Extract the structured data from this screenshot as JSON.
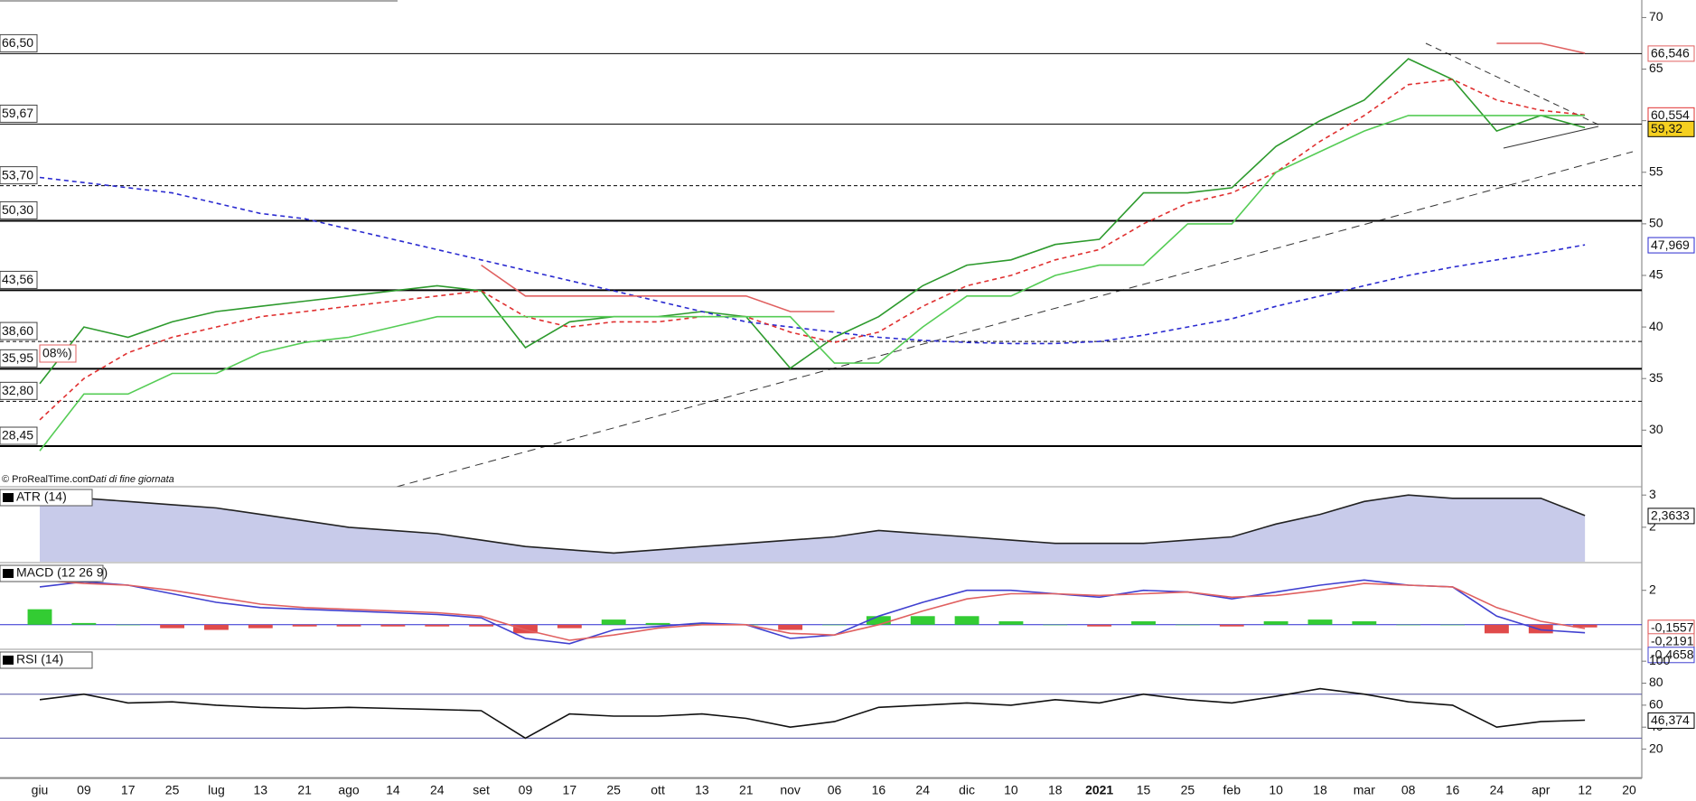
{
  "source": "© ProRealTime.com",
  "note": "Dati di fine giornata",
  "chart_data": [
    {
      "type": "line",
      "categories": [
        "giu",
        "09",
        "17",
        "25",
        "lug",
        "13",
        "21",
        "ago",
        "14",
        "24",
        "set",
        "09",
        "17",
        "25",
        "ott",
        "13",
        "21",
        "nov",
        "06",
        "16",
        "24",
        "dic",
        "10",
        "18",
        "2021",
        "15",
        "25",
        "feb",
        "10",
        "18",
        "mar",
        "08",
        "16",
        "24",
        "apr",
        "12",
        "20"
      ],
      "ylim": [
        24.6,
        71.7
      ],
      "yticks": [
        30,
        35,
        40,
        45,
        50,
        55,
        60,
        65,
        70
      ],
      "annotation": "08%)",
      "hlines": [
        {
          "value": 66.5,
          "label": "66,50",
          "style": "solid"
        },
        {
          "value": 59.67,
          "label": "59,67",
          "style": "solid"
        },
        {
          "value": 53.7,
          "label": "53,70",
          "style": "dashed"
        },
        {
          "value": 50.3,
          "label": "50,30",
          "style": "thick"
        },
        {
          "value": 43.56,
          "label": "43,56",
          "style": "thick"
        },
        {
          "value": 38.6,
          "label": "38,60",
          "style": "dashed"
        },
        {
          "value": 35.95,
          "label": "35,95",
          "style": "thick"
        },
        {
          "value": 32.8,
          "label": "32,80",
          "style": "dashed"
        },
        {
          "value": 28.45,
          "label": "28,45",
          "style": "thick"
        }
      ],
      "series": [
        {
          "color": "#2d9a2d",
          "dash": false,
          "values": [
            34.5,
            40,
            39,
            40.5,
            41.5,
            42,
            42.5,
            43,
            43.5,
            44,
            43.5,
            38,
            40.5,
            41,
            41,
            41.5,
            41,
            36,
            39,
            41,
            44,
            46,
            46.5,
            48,
            48.5,
            53,
            53,
            53.5,
            57.5,
            60,
            62,
            66,
            64,
            59,
            60.5,
            59.32,
            null
          ]
        },
        {
          "color": "#2a2ad0",
          "dash": true,
          "values": [
            54.5,
            54,
            53.5,
            53,
            52,
            51,
            50.5,
            49.5,
            48.5,
            47.5,
            46.5,
            45.5,
            44.5,
            43.5,
            42.5,
            41.5,
            40.5,
            40,
            39.5,
            39,
            38.7,
            38.5,
            38.4,
            38.4,
            38.6,
            39.2,
            40,
            40.8,
            42,
            43,
            44,
            45,
            45.8,
            46.5,
            47.2,
            47.969,
            null
          ]
        },
        {
          "color": "#e03030",
          "dash": true,
          "values": [
            31,
            35,
            37.5,
            39,
            40,
            41,
            41.5,
            42,
            42.5,
            43,
            43.5,
            41,
            40,
            40.5,
            40.5,
            41,
            41,
            39.5,
            38.5,
            39.5,
            42,
            44,
            45,
            46.5,
            47.5,
            50,
            52,
            53,
            55,
            58,
            60.5,
            63.5,
            64,
            62,
            61,
            60.554,
            null
          ]
        },
        {
          "color": "#55cc55",
          "dash": false,
          "values": [
            28,
            33.5,
            33.5,
            35.5,
            35.5,
            37.5,
            38.5,
            39,
            40,
            41,
            41,
            41,
            41,
            41,
            41,
            41,
            41,
            41,
            36.5,
            36.5,
            40,
            43,
            43,
            45,
            46,
            46,
            50,
            50,
            55,
            57,
            59,
            60.5,
            60.5,
            60.5,
            60.5,
            60.5,
            null
          ]
        },
        {
          "color": "#e06060",
          "dash": false,
          "values": [
            null,
            null,
            null,
            null,
            null,
            null,
            null,
            null,
            null,
            null,
            46,
            43,
            43,
            43,
            43,
            43,
            43,
            41.5,
            41.5,
            null,
            null,
            null,
            null,
            null,
            null,
            null,
            null,
            null,
            null,
            null,
            null,
            null,
            null,
            67.5,
            67.5,
            66.546,
            null
          ]
        }
      ],
      "tags": [
        {
          "value": 66.546,
          "label": "66,546",
          "color": "#e06060",
          "bg": "#ffffff"
        },
        {
          "value": 60.554,
          "label": "60,554",
          "color": "#e03030",
          "bg": "#ffffff"
        },
        {
          "value": 59.32,
          "label": "59,32",
          "color": "#000000",
          "bg": "#f5d020"
        },
        {
          "value": 47.969,
          "label": "47,969",
          "color": "#2a2ad0",
          "bg": "#ffffff"
        }
      ]
    },
    {
      "type": "line",
      "title": "ATR (14)",
      "ylim": [
        0.93,
        3.23
      ],
      "yticks": [
        2,
        3
      ],
      "series": [
        {
          "color": "#222222",
          "fill": "#c8cbea",
          "dash": false,
          "values": [
            2.8,
            2.9,
            2.8,
            2.7,
            2.6,
            2.4,
            2.2,
            2.0,
            1.9,
            1.8,
            1.6,
            1.4,
            1.3,
            1.2,
            1.3,
            1.4,
            1.5,
            1.6,
            1.7,
            1.9,
            1.8,
            1.7,
            1.6,
            1.5,
            1.5,
            1.5,
            1.6,
            1.7,
            2.1,
            2.4,
            2.8,
            3.0,
            2.9,
            2.9,
            2.9,
            2.3633,
            null
          ]
        }
      ],
      "tags": [
        {
          "value": 2.3633,
          "label": "2,3633",
          "color": "#000000",
          "bg": "#ffffff"
        }
      ]
    },
    {
      "type": "line",
      "title": "MACD (12 26 9)",
      "ylim": [
        -1.375,
        3.56
      ],
      "yticks": [
        2
      ],
      "hlines": [
        {
          "value": 0,
          "style": "solid",
          "color": "#2a2ad0"
        }
      ],
      "series": [
        {
          "kind": "bar",
          "color": "#33cc33",
          "neg_color": "#e04a4a",
          "values": [
            0.9,
            0.1,
            0,
            -0.2,
            -0.3,
            -0.2,
            -0.1,
            -0.1,
            -0.1,
            -0.1,
            -0.1,
            -0.5,
            -0.2,
            0.3,
            0.1,
            0.1,
            0,
            -0.3,
            0,
            0.5,
            0.5,
            0.5,
            0.2,
            0,
            -0.1,
            0.2,
            0,
            -0.1,
            0.2,
            0.3,
            0.2,
            0,
            0,
            -0.5,
            -0.5,
            -0.1557,
            null
          ]
        },
        {
          "color": "#4040d0",
          "dash": false,
          "values": [
            2.2,
            2.5,
            2.3,
            1.8,
            1.3,
            1.0,
            0.9,
            0.8,
            0.7,
            0.6,
            0.4,
            -0.8,
            -1.1,
            -0.3,
            -0.1,
            0.1,
            0.0,
            -0.8,
            -0.6,
            0.5,
            1.3,
            2.0,
            2.0,
            1.8,
            1.6,
            2.0,
            1.9,
            1.5,
            1.9,
            2.3,
            2.6,
            2.3,
            2.2,
            0.5,
            -0.3,
            -0.4658,
            null
          ]
        },
        {
          "color": "#e06060",
          "dash": false,
          "values": [
            2.6,
            2.4,
            2.3,
            2.0,
            1.6,
            1.2,
            1.0,
            0.9,
            0.8,
            0.7,
            0.5,
            -0.3,
            -0.9,
            -0.6,
            -0.2,
            0.0,
            0.0,
            -0.5,
            -0.6,
            0.0,
            0.8,
            1.5,
            1.8,
            1.8,
            1.7,
            1.8,
            1.9,
            1.6,
            1.7,
            2.0,
            2.4,
            2.3,
            2.2,
            1.0,
            0.2,
            -0.2191,
            null
          ]
        }
      ],
      "tags": [
        {
          "value": -0.1557,
          "label": "-0,1557",
          "color": "#e04a4a",
          "bg": "#ffffff"
        },
        {
          "value": -0.2191,
          "label": "-0,2191",
          "color": "#e06060",
          "bg": "#ffffff"
        },
        {
          "value": -0.4658,
          "label": "-0,4658",
          "color": "#4040d0",
          "bg": "#ffffff"
        }
      ]
    },
    {
      "type": "line",
      "title": "RSI (14)",
      "ylim": [
        -5,
        110
      ],
      "yticks": [
        20,
        40,
        60,
        80,
        100
      ],
      "hlines": [
        {
          "value": 70,
          "style": "solid",
          "color": "#5050a0"
        },
        {
          "value": 30,
          "style": "solid",
          "color": "#5050a0"
        }
      ],
      "series": [
        {
          "color": "#111111",
          "dash": false,
          "values": [
            65,
            70,
            62,
            63,
            60,
            58,
            57,
            58,
            57,
            56,
            55,
            30,
            52,
            50,
            50,
            52,
            48,
            40,
            45,
            58,
            60,
            62,
            60,
            65,
            62,
            70,
            65,
            62,
            68,
            75,
            70,
            63,
            60,
            40,
            45,
            46.374,
            null
          ]
        }
      ],
      "tags": [
        {
          "value": 46.374,
          "label": "46,374",
          "color": "#000000",
          "bg": "#ffffff"
        }
      ]
    }
  ]
}
